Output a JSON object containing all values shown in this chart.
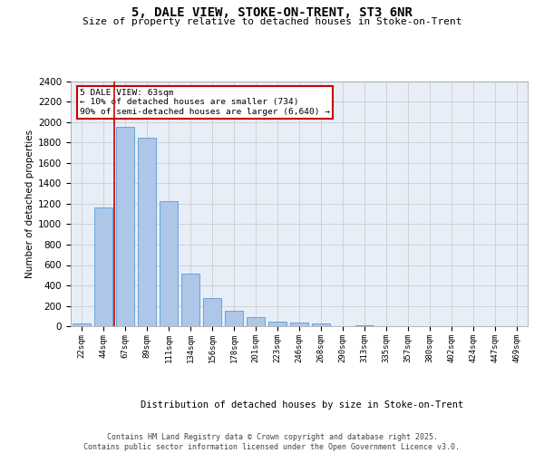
{
  "title": "5, DALE VIEW, STOKE-ON-TRENT, ST3 6NR",
  "subtitle": "Size of property relative to detached houses in Stoke-on-Trent",
  "xlabel": "Distribution of detached houses by size in Stoke-on-Trent",
  "ylabel": "Number of detached properties",
  "categories": [
    "22sqm",
    "44sqm",
    "67sqm",
    "89sqm",
    "111sqm",
    "134sqm",
    "156sqm",
    "178sqm",
    "201sqm",
    "223sqm",
    "246sqm",
    "268sqm",
    "290sqm",
    "313sqm",
    "335sqm",
    "357sqm",
    "380sqm",
    "402sqm",
    "424sqm",
    "447sqm",
    "469sqm"
  ],
  "values": [
    30,
    1160,
    1955,
    1850,
    1230,
    520,
    275,
    155,
    85,
    45,
    35,
    25,
    0,
    5,
    2,
    1,
    1,
    0,
    0,
    0,
    0
  ],
  "bar_color": "#aec6e8",
  "bar_edge_color": "#5b9bd5",
  "vline_x": 1.5,
  "vline_color": "#cc0000",
  "ylim": [
    0,
    2400
  ],
  "yticks": [
    0,
    200,
    400,
    600,
    800,
    1000,
    1200,
    1400,
    1600,
    1800,
    2000,
    2200,
    2400
  ],
  "annotation_text": "5 DALE VIEW: 63sqm\n← 10% of detached houses are smaller (734)\n90% of semi-detached houses are larger (6,640) →",
  "annotation_box_color": "#cc0000",
  "grid_color": "#cccccc",
  "bg_color": "#e8eef8",
  "footer_line1": "Contains HM Land Registry data © Crown copyright and database right 2025.",
  "footer_line2": "Contains public sector information licensed under the Open Government Licence v3.0."
}
